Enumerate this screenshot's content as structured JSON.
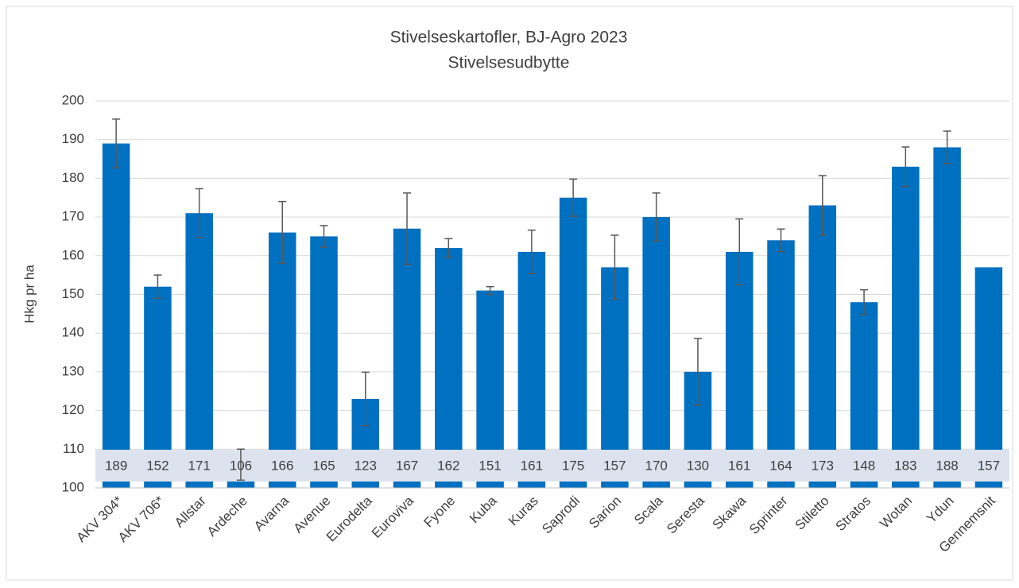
{
  "chart_data": {
    "type": "bar",
    "title": "Stivelseskartofler, BJ-Agro 2023",
    "subtitle": "Stivelsesudbytte",
    "y_label": "Hkg pr ha",
    "categories": [
      "AKV 304*",
      "AKV 706*",
      "Allstar",
      "Ardeche",
      "Avarna",
      "Avenue",
      "Eurodelta",
      "Euroviva",
      "Fyone",
      "Kuba",
      "Kuras",
      "Saprodi",
      "Sarion",
      "Scala",
      "Seresta",
      "Skawa",
      "Sprinter",
      "Stiletto",
      "Stratos",
      "Wotan",
      "Ydun",
      "Gennemsnit"
    ],
    "values": [
      189,
      152,
      171,
      106,
      166,
      165,
      123,
      167,
      162,
      151,
      161,
      175,
      157,
      170,
      130,
      161,
      164,
      173,
      148,
      183,
      188,
      157
    ],
    "errors": [
      6.3,
      3,
      6.3,
      4,
      8,
      2.8,
      6.9,
      9.2,
      2.4,
      1,
      5.6,
      4.8,
      8.3,
      6.2,
      8.6,
      8.5,
      2.9,
      7.7,
      3.2,
      5.1,
      4.2,
      null
    ],
    "color": "#0070c0",
    "error_color": "#595959",
    "ylim": [
      100,
      200
    ],
    "yticks": [
      100,
      110,
      120,
      130,
      140,
      150,
      160,
      170,
      180,
      190,
      200
    ],
    "grid": true
  }
}
